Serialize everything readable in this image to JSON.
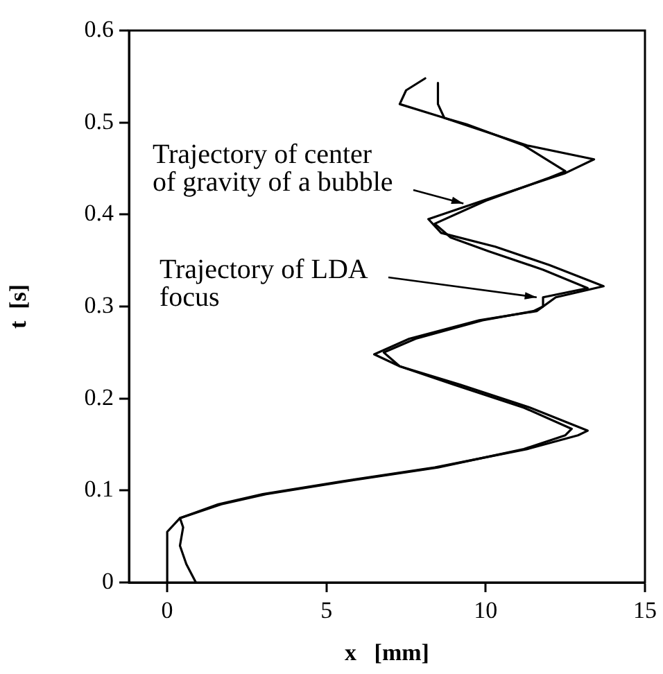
{
  "chart_data": {
    "type": "line",
    "xlabel": "x   [mm]",
    "ylabel": "t  [s]",
    "xlim": [
      -1.2,
      15
    ],
    "xticks": [
      0,
      5,
      10,
      15
    ],
    "ylim": [
      0,
      0.6
    ],
    "yticks": [
      0,
      0.1,
      0.2,
      0.3,
      0.4,
      0.5,
      0.6
    ],
    "grid": false,
    "legend": false,
    "marker": "none",
    "line_style": "solid",
    "series": [
      {
        "color": "#000000",
        "x": [
          0.9,
          0.6,
          0.4,
          0.5,
          0.4,
          1.6,
          3.0,
          5.5,
          8.4,
          11.3,
          12.9,
          13.2,
          11.4,
          9.2,
          7.3,
          6.5,
          7.6,
          9.8,
          11.6,
          12.2,
          13.7,
          12.0,
          10.3,
          8.6,
          8.2,
          9.9,
          12.5,
          13.4,
          11.3,
          9.3,
          8.7,
          7.3,
          7.5,
          8.1
        ],
        "values": [
          0,
          0.02,
          0.04,
          0.06,
          0.07,
          0.085,
          0.096,
          0.11,
          0.125,
          0.145,
          0.16,
          0.165,
          0.19,
          0.215,
          0.235,
          0.248,
          0.265,
          0.285,
          0.295,
          0.31,
          0.322,
          0.345,
          0.365,
          0.38,
          0.395,
          0.415,
          0.445,
          0.46,
          0.475,
          0.498,
          0.505,
          0.52,
          0.535,
          0.548
        ]
      },
      {
        "color": "#000000",
        "x": [
          0,
          0,
          0.4,
          1.7,
          3.1,
          5.6,
          8.5,
          11.2,
          12.5,
          12.7,
          11.2,
          9.0,
          7.3,
          6.8,
          7.8,
          9.9,
          11.5,
          11.8,
          11.8,
          13.2,
          11.8,
          10.1,
          8.9,
          8.4,
          10.0,
          12.0,
          12.5,
          11.2,
          9.4,
          8.7,
          8.5,
          8.5
        ],
        "values": [
          0,
          0.055,
          0.07,
          0.085,
          0.096,
          0.11,
          0.125,
          0.145,
          0.16,
          0.167,
          0.19,
          0.215,
          0.235,
          0.25,
          0.265,
          0.285,
          0.295,
          0.3,
          0.31,
          0.32,
          0.34,
          0.36,
          0.375,
          0.39,
          0.415,
          0.44,
          0.447,
          0.475,
          0.498,
          0.505,
          0.52,
          0.543
        ]
      }
    ],
    "annotations": [
      {
        "text": "Trajectory of center of gravity of a bubble",
        "x": 9.3,
        "y": 0.412
      },
      {
        "text": "Trajectory of LDA focus",
        "x": 11.6,
        "y": 0.31
      }
    ]
  }
}
